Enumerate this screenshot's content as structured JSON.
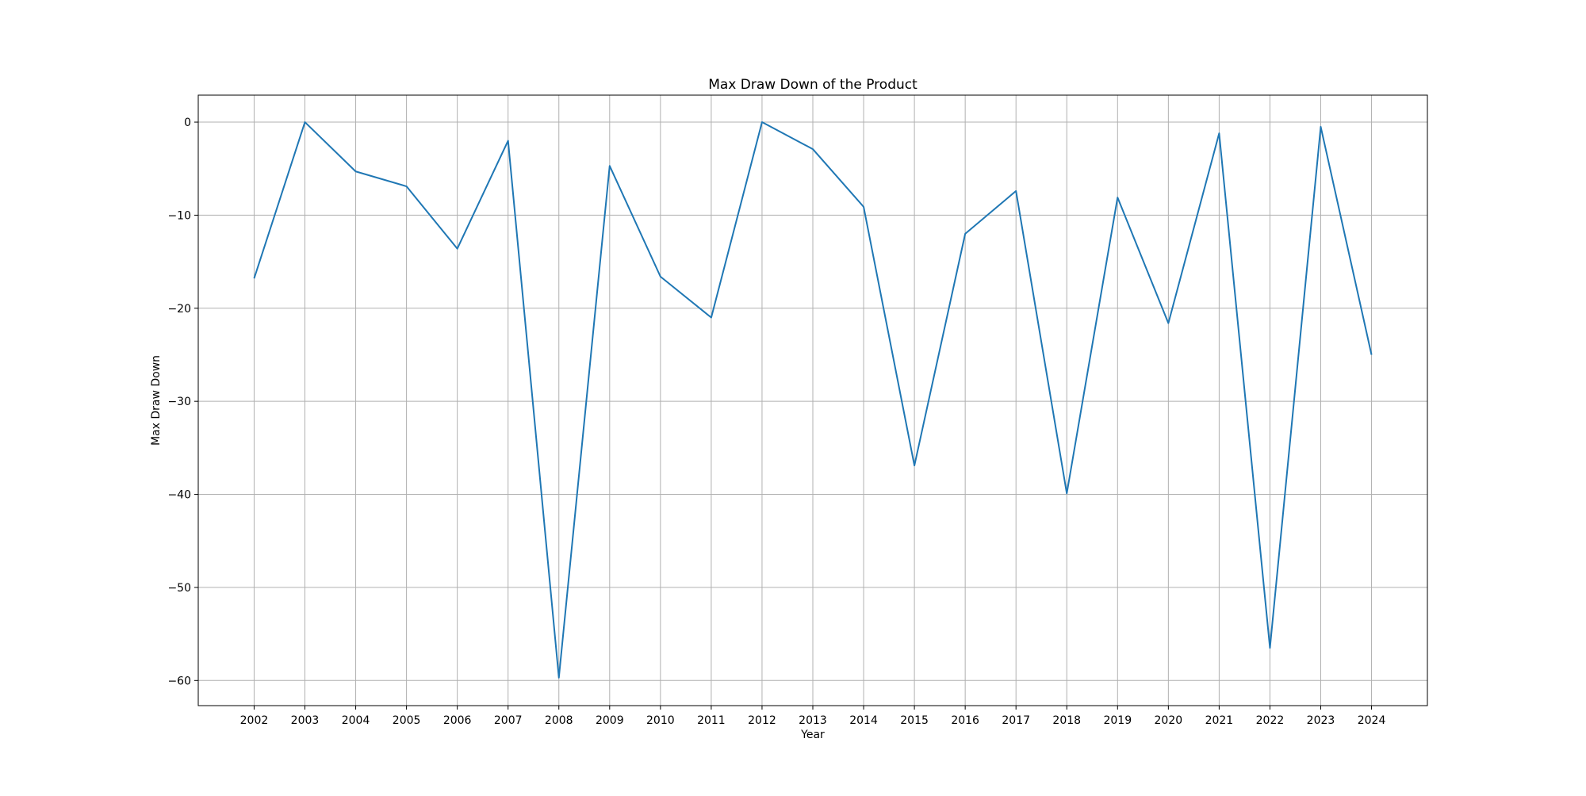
{
  "chart_data": {
    "type": "line",
    "title": "Max Draw Down of the Product",
    "xlabel": "Year",
    "ylabel": "Max Draw Down",
    "x": [
      2002,
      2003,
      2004,
      2005,
      2006,
      2007,
      2008,
      2009,
      2010,
      2011,
      2012,
      2013,
      2014,
      2015,
      2016,
      2017,
      2018,
      2019,
      2020,
      2021,
      2022,
      2023,
      2024
    ],
    "series": [
      {
        "color": "#1f77b4",
        "values": [
          -16.8,
          0.0,
          -5.3,
          -6.9,
          -13.6,
          -2.0,
          -59.7,
          -4.7,
          -16.6,
          -21.0,
          0.0,
          -2.9,
          -9.1,
          -36.9,
          -12.0,
          -7.4,
          -39.9,
          -8.1,
          -21.6,
          -1.2,
          -56.5,
          -0.5,
          -25.0
        ]
      }
    ],
    "xticks": [
      "2002",
      "2003",
      "2004",
      "2005",
      "2006",
      "2007",
      "2008",
      "2009",
      "2010",
      "2011",
      "2012",
      "2013",
      "2014",
      "2015",
      "2016",
      "2017",
      "2018",
      "2019",
      "2020",
      "2021",
      "2022",
      "2023",
      "2024"
    ],
    "yticks": [
      0,
      -10,
      -20,
      -30,
      -40,
      -50,
      -60
    ],
    "ytick_labels": [
      "0",
      "−10",
      "−20",
      "−30",
      "−40",
      "−50",
      "−60"
    ],
    "xlim": [
      2000.9,
      2025.1
    ],
    "ylim": [
      -62.7,
      2.9
    ],
    "grid": true,
    "legend": "none"
  }
}
